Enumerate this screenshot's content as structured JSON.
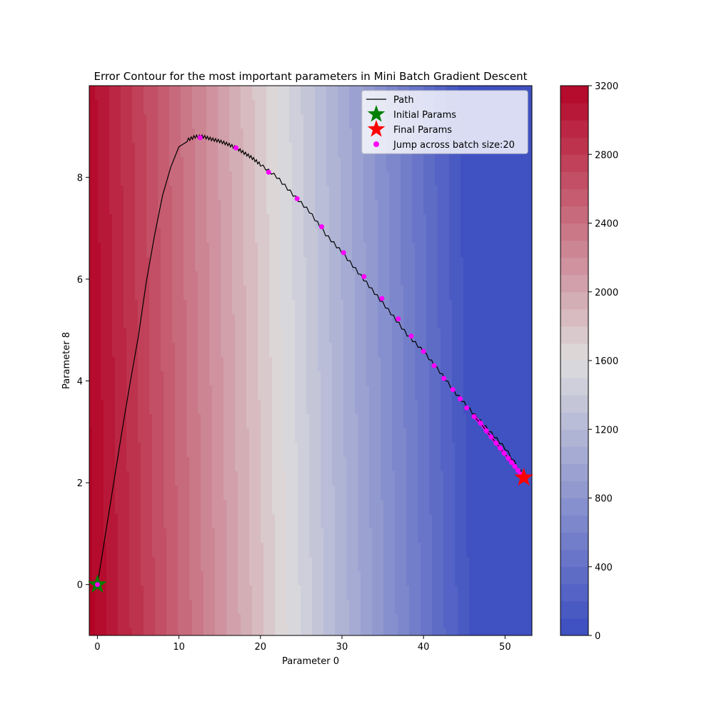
{
  "chart_data": {
    "type": "contour",
    "title": "Error Contour for the most important parameters in Mini Batch Gradient Descent",
    "xlabel": "Parameter 0",
    "ylabel": "Parameter 8",
    "xlim": [
      -1,
      53.3
    ],
    "ylim": [
      -1,
      9.8
    ],
    "xticks": [
      "0",
      "10",
      "20",
      "30",
      "40",
      "50"
    ],
    "yticks": [
      "0",
      "2",
      "4",
      "6",
      "8"
    ],
    "contour_levels": [
      0,
      3200
    ],
    "colorbar_ticks": [
      "0",
      "400",
      "800",
      "1200",
      "1600",
      "2000",
      "2400",
      "2800",
      "3200"
    ],
    "colormap": "coolwarm",
    "colormap_low": "#3b4cc0",
    "colormap_mid": "#dddddd",
    "colormap_high": "#b40426",
    "legend_position": "upper right",
    "series": [
      {
        "name": "Path",
        "color": "#000000",
        "x": [
          0,
          1,
          2,
          3,
          4,
          5,
          6,
          7,
          8,
          9,
          10,
          11,
          12,
          13,
          14,
          15,
          16,
          17,
          18,
          19,
          20,
          22,
          24,
          26,
          28,
          30,
          32,
          34,
          36,
          38,
          40,
          42,
          44,
          46,
          48,
          50,
          52.3
        ],
        "y": [
          0,
          1.0,
          2.0,
          3.0,
          3.95,
          4.85,
          5.95,
          6.85,
          7.65,
          8.2,
          8.6,
          8.7,
          8.77,
          8.77,
          8.72,
          8.68,
          8.62,
          8.55,
          8.45,
          8.35,
          8.22,
          7.98,
          7.63,
          7.3,
          6.85,
          6.5,
          6.1,
          5.7,
          5.3,
          4.88,
          4.55,
          4.15,
          3.72,
          3.35,
          3.0,
          2.65,
          2.1
        ]
      },
      {
        "name": "Initial Params",
        "color": "#008000",
        "x": [
          0
        ],
        "y": [
          0
        ]
      },
      {
        "name": "Final Params",
        "color": "#ff0000",
        "x": [
          52.3
        ],
        "y": [
          2.1
        ]
      },
      {
        "name": "Jump across batch size:20",
        "color": "#ff00ff",
        "x": [
          0,
          12.6,
          17,
          21,
          24.5,
          27.5,
          30.2,
          32.7,
          34.9,
          36.9,
          38.5,
          40,
          41.3,
          42.5,
          43.6,
          44.5,
          45.3,
          46.2,
          47,
          47.7,
          48.3,
          48.9,
          49.4,
          49.9,
          50.4,
          50.8,
          51.2,
          51.6,
          51.9,
          52.3
        ],
        "y": [
          0,
          8.78,
          8.58,
          8.1,
          7.58,
          7.03,
          6.52,
          6.05,
          5.62,
          5.22,
          4.88,
          4.58,
          4.3,
          4.05,
          3.83,
          3.65,
          3.47,
          3.3,
          3.17,
          3.02,
          2.9,
          2.78,
          2.68,
          2.58,
          2.48,
          2.4,
          2.32,
          2.24,
          2.17,
          2.1
        ]
      }
    ]
  }
}
